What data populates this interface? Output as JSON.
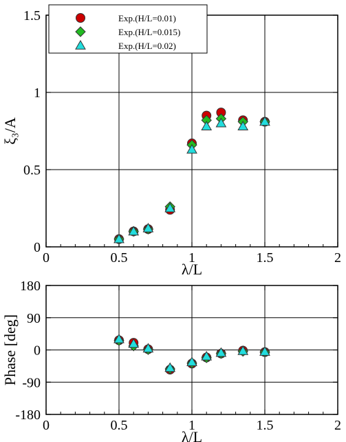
{
  "chart_data": [
    {
      "type": "scatter",
      "title": "",
      "xlabel": "λ/L",
      "ylabel": "ξ₃/A",
      "xlim": [
        0,
        2
      ],
      "ylim": [
        0,
        1.5
      ],
      "xticks": [
        0,
        0.5,
        1,
        1.5,
        2
      ],
      "xtick_labels": [
        "0",
        "0.5",
        "1",
        "1.5",
        "2"
      ],
      "yticks": [
        0,
        0.5,
        1,
        1.5
      ],
      "ytick_labels": [
        "0",
        "0.5",
        "1",
        "1.5"
      ],
      "grid": true,
      "legend_position": "top-left",
      "series": [
        {
          "name": "Exp.(H/L=0.01)",
          "marker": "circle",
          "color": "#cc0000",
          "x": [
            0.5,
            0.6,
            0.7,
            0.85,
            1.0,
            1.1,
            1.2,
            1.35,
            1.5
          ],
          "y": [
            0.05,
            0.1,
            0.115,
            0.24,
            0.67,
            0.85,
            0.87,
            0.82,
            0.81
          ]
        },
        {
          "name": "Exp.(H/L=0.015)",
          "marker": "diamond",
          "color": "#22bb22",
          "x": [
            0.5,
            0.6,
            0.7,
            0.85,
            1.0,
            1.1,
            1.2,
            1.35,
            1.5
          ],
          "y": [
            0.05,
            0.1,
            0.115,
            0.26,
            0.66,
            0.82,
            0.83,
            0.81,
            0.81
          ]
        },
        {
          "name": "Exp.(H/L=0.02)",
          "marker": "triangle",
          "color": "#22dddd",
          "x": [
            0.5,
            0.6,
            0.7,
            0.85,
            1.0,
            1.1,
            1.2,
            1.35,
            1.5
          ],
          "y": [
            0.05,
            0.1,
            0.12,
            0.25,
            0.63,
            0.78,
            0.8,
            0.78,
            0.81
          ]
        }
      ]
    },
    {
      "type": "scatter",
      "title": "",
      "xlabel": "λ/L",
      "ylabel": "Phase [deg]",
      "xlim": [
        0,
        2
      ],
      "ylim": [
        -180,
        180
      ],
      "xticks": [
        0,
        0.5,
        1,
        1.5,
        2
      ],
      "xtick_labels": [
        "0",
        "0.5",
        "1",
        "1.5",
        "2"
      ],
      "yticks": [
        -180,
        -90,
        0,
        90,
        180
      ],
      "ytick_labels": [
        "-180",
        "-90",
        "0",
        "90",
        "180"
      ],
      "grid": true,
      "series": [
        {
          "name": "Exp.(H/L=0.01)",
          "marker": "circle",
          "color": "#cc0000",
          "x": [
            0.5,
            0.6,
            0.7,
            0.85,
            1.0,
            1.1,
            1.2,
            1.35,
            1.5
          ],
          "y": [
            27,
            20,
            2,
            -55,
            -38,
            -21,
            -10,
            -2,
            -6
          ]
        },
        {
          "name": "Exp.(H/L=0.015)",
          "marker": "diamond",
          "color": "#22bb22",
          "x": [
            0.5,
            0.6,
            0.7,
            0.85,
            1.0,
            1.1,
            1.2,
            1.35,
            1.5
          ],
          "y": [
            26,
            11,
            1,
            -53,
            -37,
            -22,
            -10,
            -4,
            -6
          ]
        },
        {
          "name": "Exp.(H/L=0.02)",
          "marker": "triangle",
          "color": "#22dddd",
          "x": [
            0.5,
            0.6,
            0.7,
            0.85,
            1.0,
            1.1,
            1.2,
            1.35,
            1.5
          ],
          "y": [
            30,
            17,
            4,
            -50,
            -34,
            -18,
            -8,
            -3,
            -5
          ]
        }
      ]
    }
  ]
}
